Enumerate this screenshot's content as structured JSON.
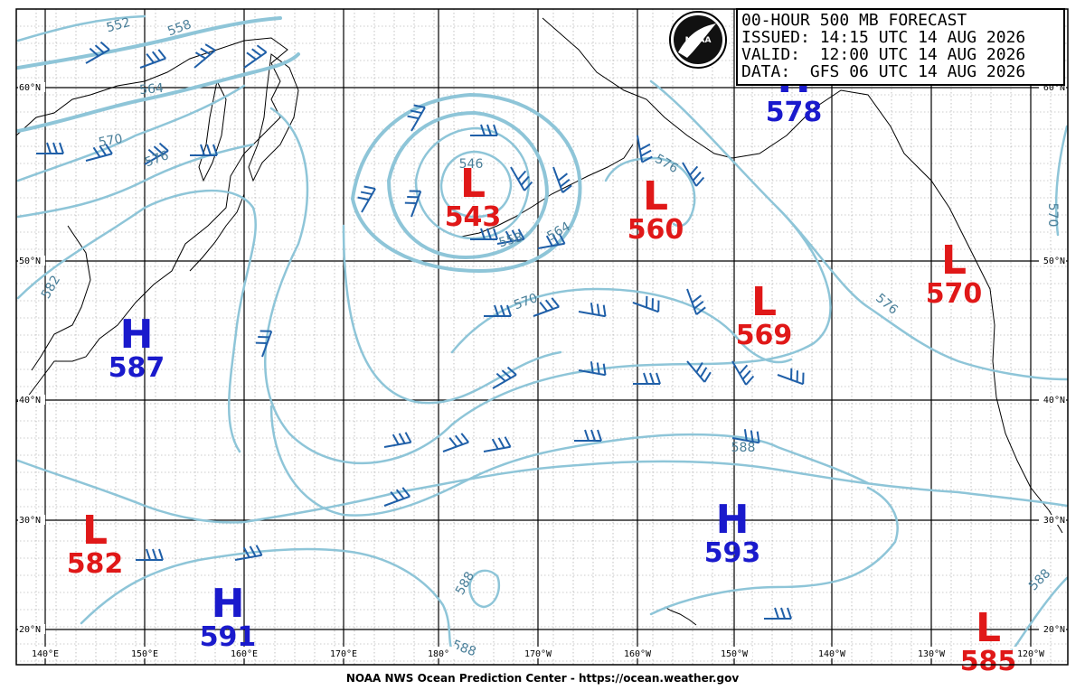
{
  "header": {
    "line1": "00-HOUR 500 MB FORECAST",
    "line2": "ISSUED: 14:15 UTC 14 AUG 2026",
    "line3": "VALID:  12:00 UTC 14 AUG 2026",
    "line4": "DATA:  GFS 06 UTC 14 AUG 2026"
  },
  "logo": {
    "text": "NOAA"
  },
  "footer": "NOAA NWS Ocean Prediction Center - https://ocean.weather.gov",
  "colors": {
    "contour": "#8ec5d8",
    "contour_label": "#4a7f99",
    "high": "#1a1acc",
    "low": "#e01818",
    "barb": "#1f5fa8",
    "grid": "#000000",
    "minor_grid": "#9a9a9a"
  },
  "lat_labels": [
    "60°N",
    "50°N",
    "40°N",
    "30°N",
    "20°N"
  ],
  "lon_labels": [
    "140°E",
    "150°E",
    "160°E",
    "170°E",
    "180°",
    "170°W",
    "160°W",
    "150°W",
    "140°W",
    "130°W",
    "120°W"
  ],
  "centers": [
    {
      "type": "L",
      "value": "543"
    },
    {
      "type": "L",
      "value": "560"
    },
    {
      "type": "L",
      "value": "569"
    },
    {
      "type": "L",
      "value": "570"
    },
    {
      "type": "L",
      "value": "582"
    },
    {
      "type": "L",
      "value": "585"
    },
    {
      "type": "H",
      "value": "587"
    },
    {
      "type": "H",
      "value": "593"
    },
    {
      "type": "H",
      "value": "591"
    },
    {
      "type": "H",
      "value": "578"
    }
  ],
  "contour_labels": [
    "552",
    "558",
    "564",
    "570",
    "576",
    "546",
    "558",
    "564",
    "570",
    "576",
    "582",
    "588",
    "588",
    "570",
    "588",
    "576",
    "588"
  ]
}
